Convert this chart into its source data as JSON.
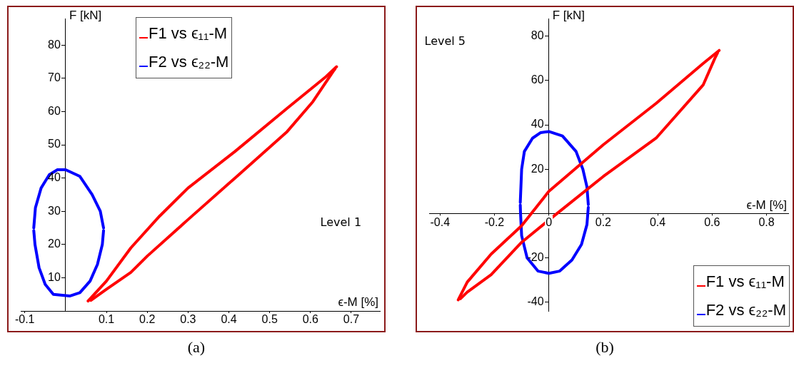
{
  "chart_data": [
    {
      "type": "line",
      "xlabel": "ϵ-M [%]",
      "ylabel": "F [kN]",
      "annotations": [
        "Level 1",
        "(a)"
      ],
      "legend": "top",
      "marker": "none",
      "grid": false,
      "xlim": [
        -0.11,
        0.77
      ],
      "ylim": [
        0,
        88
      ],
      "xticks": [
        -0.1,
        0.1,
        0.2,
        0.3,
        0.4,
        0.5,
        0.6,
        0.7
      ],
      "yticks": [
        10,
        20,
        30,
        40,
        50,
        60,
        70,
        80
      ],
      "series": [
        {
          "name": "F1 vs ϵ₁₁-M",
          "color": "#ff0000",
          "x": [
            0.055,
            0.1,
            0.16,
            0.23,
            0.3,
            0.415,
            0.543,
            0.638,
            0.664
          ],
          "values": [
            3,
            9,
            19,
            28.5,
            37,
            48,
            61,
            70.5,
            73.5
          ]
        },
        {
          "color": "#ff0000",
          "x": [
            0.062,
            0.1,
            0.16,
            0.2,
            0.3,
            0.415,
            0.543,
            0.606,
            0.655,
            0.66
          ],
          "values": [
            3.2,
            6.5,
            11.6,
            16.5,
            27.5,
            40,
            54,
            63,
            72,
            72.8
          ]
        },
        {
          "name": "F2 vs ϵ₂₂-M",
          "color": "#0000ff",
          "x": [
            -0.078,
            -0.074,
            -0.06,
            -0.04,
            -0.02,
            0,
            0.035,
            0.065,
            0.085,
            0.093
          ],
          "values": [
            25,
            31,
            37,
            41,
            42.5,
            42.5,
            40.5,
            35,
            30,
            25
          ]
        },
        {
          "color": "#0000ff",
          "x": [
            -0.078,
            -0.075,
            -0.065,
            -0.05,
            -0.03,
            0.01,
            0.035,
            0.06,
            0.078,
            0.09,
            0.093
          ],
          "values": [
            24.2,
            20,
            13,
            8,
            5,
            4.5,
            5.5,
            9,
            14,
            20,
            24.2
          ]
        }
      ]
    },
    {
      "type": "line",
      "xlabel": "ϵ-M [%]",
      "ylabel": "F [kN]",
      "annotations": [
        "Level 5",
        "(b)"
      ],
      "legend": "bottom right",
      "marker": "none",
      "grid": false,
      "xlim": [
        -0.44,
        0.88
      ],
      "ylim": [
        -44,
        88
      ],
      "xticks": [
        -0.4,
        -0.2,
        0,
        0.2,
        0.4,
        0.6,
        0.8
      ],
      "yticks": [
        -40,
        -20,
        20,
        40,
        60,
        80
      ],
      "series": [
        {
          "name": "F1 vs ϵ₁₁-M",
          "color": "#ff0000",
          "x": [
            -0.333,
            -0.3,
            -0.212,
            -0.1,
            0,
            0.2,
            0.394,
            0.567,
            0.626
          ],
          "values": [
            -39,
            -31,
            -18.3,
            -5.5,
            10,
            31,
            49.7,
            67.7,
            73.6
          ]
        },
        {
          "color": "#ff0000",
          "x": [
            -0.325,
            -0.3,
            -0.212,
            -0.1,
            0.03,
            0.2,
            0.394,
            0.567,
            0.61,
            0.62
          ],
          "values": [
            -38.5,
            -35.5,
            -27.6,
            -13,
            0,
            16.7,
            34,
            58,
            70,
            72.5
          ]
        },
        {
          "name": "F2 vs ϵ₂₂-M",
          "color": "#0000ff",
          "x": [
            -0.105,
            -0.1,
            -0.09,
            -0.06,
            -0.03,
            0,
            0.05,
            0.1,
            0.125,
            0.14,
            0.145
          ],
          "values": [
            5,
            20,
            28,
            34,
            36.5,
            37,
            35,
            28,
            20,
            12,
            4
          ]
        },
        {
          "color": "#0000ff",
          "x": [
            -0.105,
            -0.104,
            -0.1,
            -0.08,
            -0.04,
            0,
            0.04,
            0.085,
            0.12,
            0.14,
            0.145
          ],
          "values": [
            3.8,
            0,
            -10,
            -20,
            -26,
            -27,
            -26,
            -21,
            -14,
            -5,
            2.8
          ]
        }
      ]
    }
  ]
}
